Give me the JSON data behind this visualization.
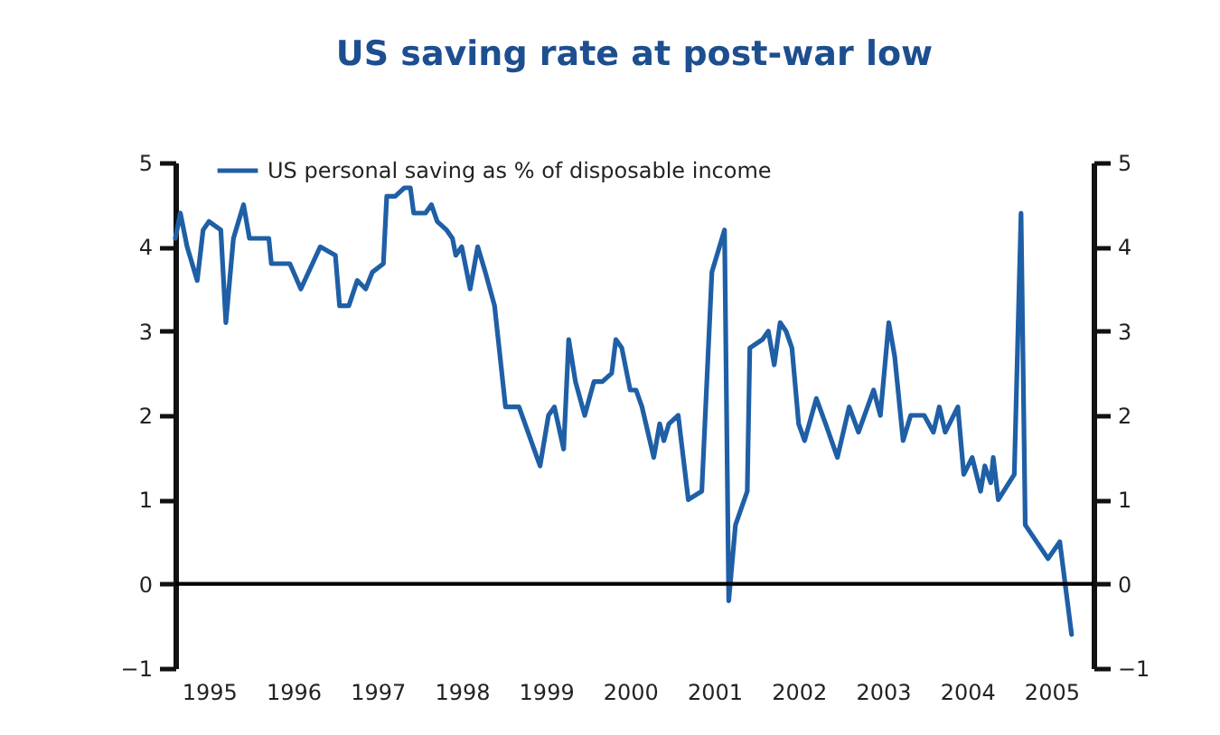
{
  "chart_data": {
    "type": "line",
    "title": "US saving rate at post-war low",
    "x": [
      1994.6,
      1994.66,
      1994.74,
      1994.86,
      1994.93,
      1995.0,
      1995.14,
      1995.2,
      1995.29,
      1995.41,
      1995.48,
      1995.71,
      1995.74,
      1995.96,
      1996.09,
      1996.32,
      1996.5,
      1996.55,
      1996.66,
      1996.76,
      1996.86,
      1996.94,
      1997.07,
      1997.11,
      1997.21,
      1997.32,
      1997.39,
      1997.43,
      1997.57,
      1997.64,
      1997.71,
      1997.82,
      1997.89,
      1997.93,
      1998.0,
      1998.1,
      1998.19,
      1998.28,
      1998.39,
      1998.52,
      1998.68,
      1998.93,
      1999.03,
      1999.1,
      1999.21,
      1999.27,
      1999.35,
      1999.46,
      1999.57,
      1999.67,
      1999.78,
      1999.83,
      1999.9,
      2000.0,
      2000.07,
      2000.14,
      2000.28,
      2000.35,
      2000.4,
      2000.46,
      2000.57,
      2000.69,
      2000.85,
      2000.97,
      2001.12,
      2001.17,
      2001.25,
      2001.39,
      2001.42,
      2001.57,
      2001.64,
      2001.71,
      2001.78,
      2001.85,
      2001.92,
      2002.0,
      2002.07,
      2002.21,
      2002.32,
      2002.46,
      2002.6,
      2002.71,
      2002.89,
      2002.97,
      2003.07,
      2003.14,
      2003.24,
      2003.33,
      2003.49,
      2003.6,
      2003.67,
      2003.74,
      2003.89,
      2003.96,
      2004.06,
      2004.16,
      2004.21,
      2004.28,
      2004.31,
      2004.37,
      2004.56,
      2004.64,
      2004.69,
      2004.96,
      2005.1,
      2005.24
    ],
    "series": [
      {
        "name": "US personal saving as % of disposable income",
        "color": "#1f5fa6",
        "values": [
          4.1,
          4.4,
          4.0,
          3.6,
          4.2,
          4.3,
          4.2,
          3.1,
          4.1,
          4.5,
          4.1,
          4.1,
          3.8,
          3.8,
          3.5,
          4.0,
          3.9,
          3.3,
          3.3,
          3.6,
          3.5,
          3.7,
          3.8,
          4.6,
          4.6,
          4.7,
          4.7,
          4.4,
          4.4,
          4.5,
          4.3,
          4.2,
          4.1,
          3.9,
          4.0,
          3.5,
          4.0,
          3.7,
          3.3,
          2.1,
          2.1,
          1.4,
          2.0,
          2.1,
          1.6,
          2.9,
          2.4,
          2.0,
          2.4,
          2.4,
          2.5,
          2.9,
          2.8,
          2.3,
          2.3,
          2.1,
          1.5,
          1.9,
          1.7,
          1.9,
          2.0,
          1.0,
          1.1,
          3.7,
          4.2,
          -0.2,
          0.7,
          1.1,
          2.8,
          2.9,
          3.0,
          2.6,
          3.1,
          3.0,
          2.8,
          1.9,
          1.7,
          2.2,
          1.9,
          1.5,
          2.1,
          1.8,
          2.3,
          2.0,
          3.1,
          2.7,
          1.7,
          2.0,
          2.0,
          1.8,
          2.1,
          1.8,
          2.1,
          1.3,
          1.5,
          1.1,
          1.4,
          1.2,
          1.5,
          1.0,
          1.3,
          4.4,
          0.7,
          0.3,
          0.5,
          -0.6
        ]
      }
    ],
    "xlim": [
      1994.6,
      2005.5
    ],
    "xticks": [
      1995,
      1996,
      1997,
      1998,
      1999,
      2000,
      2001,
      2002,
      2003,
      2004,
      2005
    ],
    "ylim": [
      -1,
      5
    ],
    "yticks": [
      -1,
      0,
      1,
      2,
      3,
      4,
      5
    ],
    "y2lim": [
      -1,
      5
    ],
    "y2ticks": [
      -1,
      0,
      1,
      2,
      3,
      4,
      5
    ],
    "ref_lines": [
      {
        "axis": "y",
        "value": 0,
        "color": "#000000"
      }
    ],
    "legend": "top left",
    "grid": false
  }
}
